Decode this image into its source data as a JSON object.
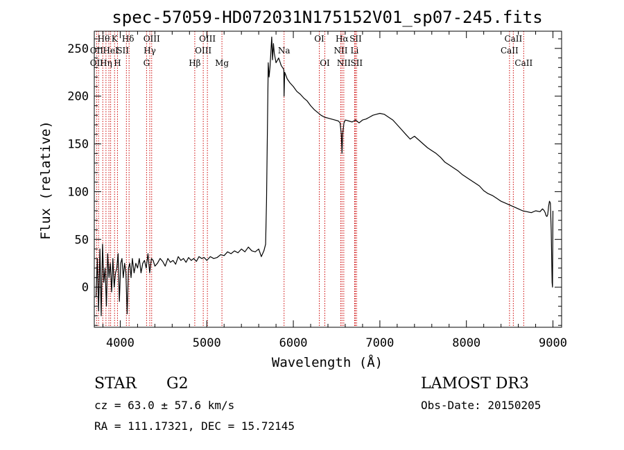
{
  "chart_data": {
    "type": "line",
    "title": "spec-57059-HD072031N175152V01_sp07-245.fits",
    "xlabel": "Wavelength (Å)",
    "ylabel": "Flux (relative)",
    "xlim": [
      3700,
      9100
    ],
    "ylim": [
      -42,
      268
    ],
    "x_ticks": [
      4000,
      5000,
      6000,
      7000,
      8000,
      9000
    ],
    "y_ticks": [
      0,
      50,
      100,
      150,
      200,
      250
    ],
    "grid": false,
    "line_color": "#000000",
    "marker_color": "#cc0000",
    "series": [
      {
        "x": [
          3720,
          3735,
          3750,
          3765,
          3780,
          3795,
          3810,
          3825,
          3840,
          3855,
          3870,
          3885,
          3900,
          3915,
          3930,
          3945,
          3960,
          3975,
          3990,
          4005,
          4020,
          4035,
          4050,
          4065,
          4080,
          4095,
          4110,
          4125,
          4140,
          4160,
          4180,
          4200,
          4220,
          4240,
          4260,
          4280,
          4300,
          4320,
          4340,
          4360,
          4380,
          4400,
          4430,
          4460,
          4490,
          4520,
          4550,
          4580,
          4610,
          4640,
          4670,
          4700,
          4730,
          4760,
          4790,
          4820,
          4850,
          4880,
          4910,
          4940,
          4970,
          5000,
          5040,
          5080,
          5120,
          5160,
          5200,
          5240,
          5280,
          5320,
          5360,
          5400,
          5440,
          5480,
          5520,
          5560,
          5600,
          5630,
          5660,
          5680,
          5690,
          5700,
          5710,
          5720,
          5730,
          5740,
          5750,
          5760,
          5770,
          5780,
          5800,
          5830,
          5860,
          5890,
          5893,
          5900,
          5930,
          5960,
          6000,
          6040,
          6080,
          6120,
          6160,
          6200,
          6240,
          6280,
          6320,
          6360,
          6400,
          6440,
          6480,
          6520,
          6540,
          6555,
          6563,
          6570,
          6585,
          6600,
          6640,
          6680,
          6720,
          6760,
          6800,
          6840,
          6880,
          6920,
          6960,
          7000,
          7050,
          7100,
          7150,
          7200,
          7250,
          7300,
          7350,
          7400,
          7450,
          7500,
          7550,
          7600,
          7650,
          7700,
          7750,
          7800,
          7850,
          7900,
          7950,
          8000,
          8050,
          8100,
          8150,
          8200,
          8250,
          8300,
          8350,
          8400,
          8450,
          8500,
          8550,
          8600,
          8650,
          8700,
          8750,
          8800,
          8850,
          8880,
          8900,
          8910,
          8920,
          8930,
          8940,
          8950,
          8960,
          8970,
          8980,
          8990,
          8995,
          9000
        ],
        "y": [
          -10,
          30,
          -25,
          40,
          -30,
          45,
          5,
          20,
          -20,
          35,
          10,
          25,
          -5,
          30,
          0,
          15,
          20,
          35,
          -15,
          25,
          30,
          10,
          25,
          15,
          -28,
          20,
          25,
          10,
          30,
          15,
          25,
          20,
          30,
          15,
          25,
          28,
          20,
          35,
          15,
          30,
          28,
          22,
          25,
          30,
          27,
          22,
          30,
          26,
          28,
          24,
          32,
          28,
          30,
          26,
          31,
          28,
          30,
          27,
          32,
          30,
          31,
          28,
          32,
          30,
          31,
          34,
          33,
          37,
          35,
          38,
          36,
          40,
          37,
          42,
          38,
          37,
          40,
          32,
          38,
          45,
          90,
          160,
          235,
          220,
          230,
          245,
          262,
          238,
          255,
          245,
          235,
          240,
          232,
          228,
          200,
          225,
          218,
          214,
          210,
          205,
          202,
          198,
          195,
          190,
          186,
          183,
          180,
          178,
          177,
          176,
          175,
          174,
          172,
          160,
          140,
          160,
          172,
          175,
          174,
          173,
          175,
          172,
          175,
          176,
          178,
          180,
          181,
          182,
          181,
          178,
          175,
          170,
          165,
          160,
          155,
          158,
          154,
          150,
          146,
          143,
          140,
          136,
          131,
          128,
          125,
          122,
          118,
          115,
          112,
          109,
          106,
          101,
          98,
          96,
          93,
          90,
          88,
          86,
          84,
          82,
          80,
          79,
          78,
          80,
          79,
          82,
          80,
          78,
          75,
          74,
          76,
          85,
          90,
          88,
          60,
          5,
          0,
          80
        ]
      }
    ],
    "spectral_lines": [
      {
        "wavelength": 3727,
        "label": "OII"
      },
      {
        "wavelength": 3750,
        "label": "OII"
      },
      {
        "wavelength": 3798,
        "label": "Hθ"
      },
      {
        "wavelength": 3835,
        "label": "Hη"
      },
      {
        "wavelength": 3869,
        "label": "NeIII"
      },
      {
        "wavelength": 3889,
        "label": "HeI"
      },
      {
        "wavelength": 3934,
        "label": "K"
      },
      {
        "wavelength": 3968,
        "label": "H"
      },
      {
        "wavelength": 4071,
        "label": "SII"
      },
      {
        "wavelength": 4102,
        "label": "Hδ"
      },
      {
        "wavelength": 4304,
        "label": "G"
      },
      {
        "wavelength": 4341,
        "label": "Hγ"
      },
      {
        "wavelength": 4363,
        "label": "OIII"
      },
      {
        "wavelength": 4861,
        "label": "Hβ"
      },
      {
        "wavelength": 4959,
        "label": "OIII"
      },
      {
        "wavelength": 5007,
        "label": "OIII"
      },
      {
        "wavelength": 5175,
        "label": "Mg"
      },
      {
        "wavelength": 5893,
        "label": "Na"
      },
      {
        "wavelength": 6300,
        "label": "OI"
      },
      {
        "wavelength": 6364,
        "label": "OI"
      },
      {
        "wavelength": 6548,
        "label": "NII"
      },
      {
        "wavelength": 6563,
        "label": "Hα"
      },
      {
        "wavelength": 6583,
        "label": "NII"
      },
      {
        "wavelength": 6708,
        "label": "Li"
      },
      {
        "wavelength": 6716,
        "label": "SII"
      },
      {
        "wavelength": 6731,
        "label": "SII"
      },
      {
        "wavelength": 8498,
        "label": "CaII"
      },
      {
        "wavelength": 8542,
        "label": "CaII"
      },
      {
        "wavelength": 8662,
        "label": "CaII"
      }
    ],
    "line_labels": [
      {
        "text": "Hθ",
        "wl": 3808,
        "row": 0
      },
      {
        "text": "K",
        "wl": 3934,
        "row": 0
      },
      {
        "text": "Hδ",
        "wl": 4090,
        "row": 0
      },
      {
        "text": "OIII",
        "wl": 4363,
        "row": 0
      },
      {
        "text": "OIII",
        "wl": 5007,
        "row": 0
      },
      {
        "text": "OI",
        "wl": 6300,
        "row": 0
      },
      {
        "text": "Hα",
        "wl": 6563,
        "row": 0
      },
      {
        "text": "SII",
        "wl": 6720,
        "row": 0
      },
      {
        "text": "CaII",
        "wl": 8542,
        "row": 0
      },
      {
        "text": "OII",
        "wl": 3727,
        "row": 1
      },
      {
        "text": "HeI",
        "wl": 3889,
        "row": 1
      },
      {
        "text": "SII",
        "wl": 4030,
        "row": 1
      },
      {
        "text": "Hγ",
        "wl": 4341,
        "row": 1
      },
      {
        "text": "OIII",
        "wl": 4959,
        "row": 1
      },
      {
        "text": "Na",
        "wl": 5893,
        "row": 1
      },
      {
        "text": "NII",
        "wl": 6548,
        "row": 1
      },
      {
        "text": "Li",
        "wl": 6708,
        "row": 1
      },
      {
        "text": "CaII",
        "wl": 8498,
        "row": 1
      },
      {
        "text": "OII",
        "wl": 3727,
        "row": 2
      },
      {
        "text": "Hη",
        "wl": 3835,
        "row": 2
      },
      {
        "text": "H",
        "wl": 3968,
        "row": 2
      },
      {
        "text": "G",
        "wl": 4304,
        "row": 2
      },
      {
        "text": "Hβ",
        "wl": 4861,
        "row": 2
      },
      {
        "text": "Mg",
        "wl": 5175,
        "row": 2
      },
      {
        "text": "OI",
        "wl": 6364,
        "row": 2
      },
      {
        "text": "NII",
        "wl": 6583,
        "row": 2
      },
      {
        "text": "SII",
        "wl": 6731,
        "row": 2
      },
      {
        "text": "CaII",
        "wl": 8662,
        "row": 2
      }
    ]
  },
  "info": {
    "class": "STAR",
    "subclass": "G2",
    "survey": "LAMOST DR3",
    "cz": "cz = 63.0 ± 57.6 km/s",
    "obs_date": "Obs-Date: 20150205",
    "coords": "RA = 111.17321, DEC =  15.72145"
  }
}
